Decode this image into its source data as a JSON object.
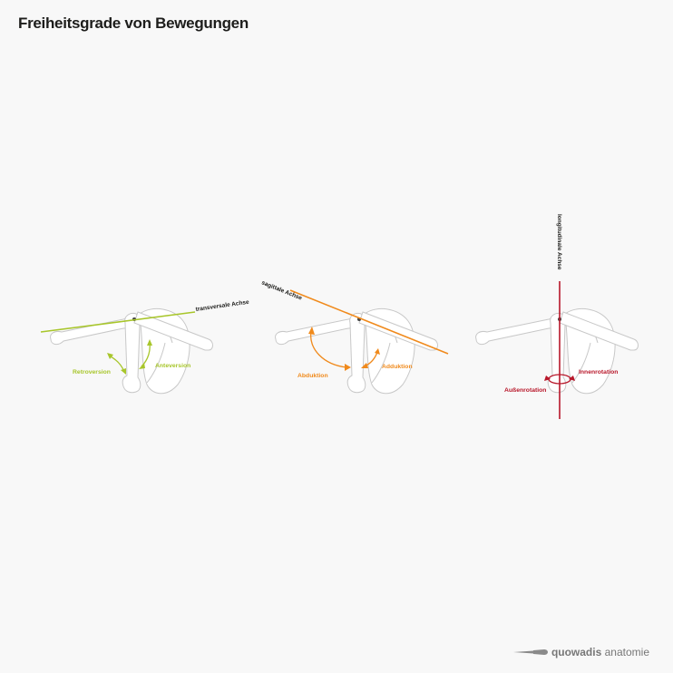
{
  "title": "Freiheitsgrade von Bewegungen",
  "colors": {
    "transversal": "#a8c62b",
    "sagittal": "#f08a1c",
    "longitudinal": "#b8172a",
    "bone_outline": "#c8c8c8",
    "axis_label": "#1d1d1b"
  },
  "panels": [
    {
      "axis_label": "transversale Achse",
      "motion_left": "Retroversion",
      "motion_right": "Anteversion"
    },
    {
      "axis_label": "sagittale Achse",
      "motion_left": "Abduktion",
      "motion_right": "Adduktion"
    },
    {
      "axis_label": "longitudinale Achse",
      "motion_left": "Außenrotation",
      "motion_right": "Innenrotation"
    }
  ],
  "logo": {
    "brand": "quowadis",
    "suffix": "anatomie",
    "icon": "scalpel-icon"
  }
}
